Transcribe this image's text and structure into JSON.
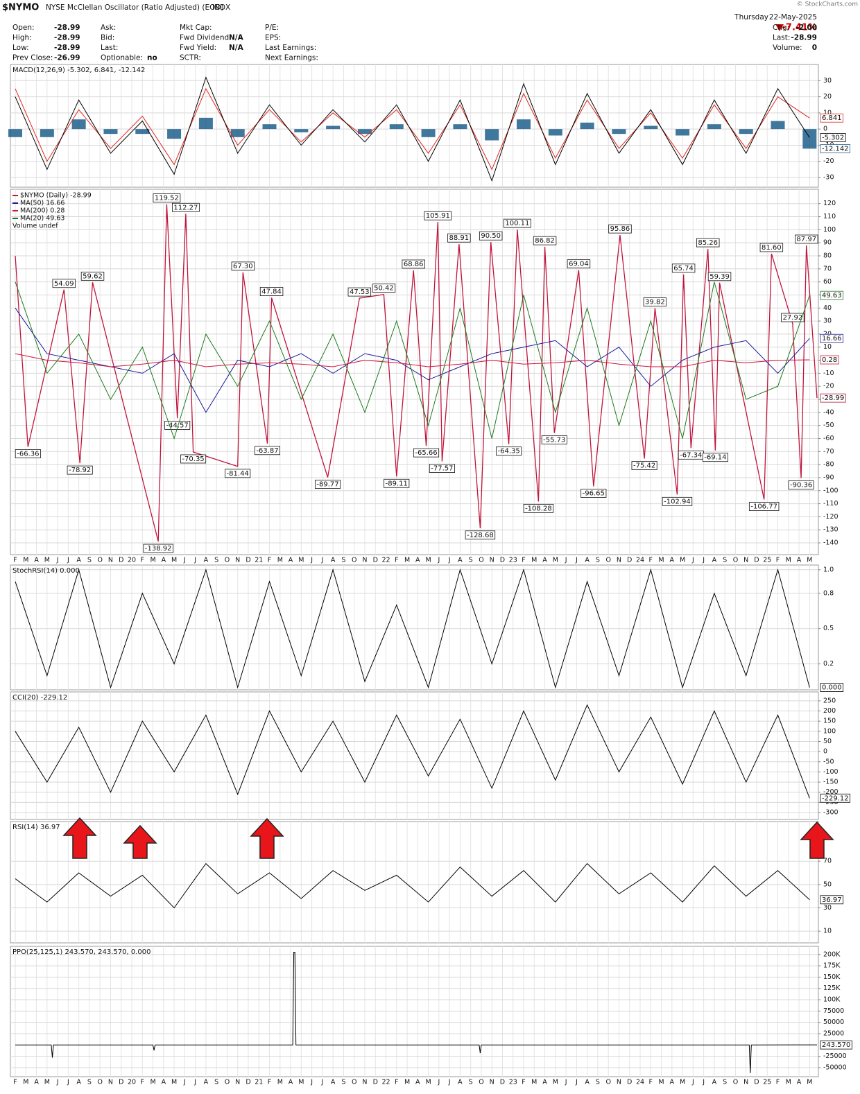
{
  "header": {
    "symbol": "$NYMO",
    "name": "NYSE McClellan Oscillator (Ratio Adjusted) (EOD)",
    "exchange": "INDX",
    "credit": "© StockCharts.com",
    "day": "Thursday",
    "date": "22-May-2025",
    "change_pct": "-7.41%",
    "columns": [
      [
        {
          "label": "Open:",
          "value": "-28.99"
        },
        {
          "label": "High:",
          "value": "-28.99"
        },
        {
          "label": "Low:",
          "value": "-28.99"
        },
        {
          "label": "Prev Close:",
          "value": "-26.99"
        }
      ],
      [
        {
          "label": "Ask:"
        },
        {
          "label": "Bid:"
        },
        {
          "label": "Last:"
        },
        {
          "label": "Optionable:",
          "value": "no"
        }
      ],
      [
        {
          "label": "Mkt Cap:"
        },
        {
          "label": "Fwd Dividend:",
          "value": "N/A"
        },
        {
          "label": "Fwd Yield:",
          "value": "N/A"
        },
        {
          "label": "SCTR:"
        }
      ],
      [
        {
          "label": "P/E:"
        },
        {
          "label": "EPS:"
        },
        {
          "label": "Last Earnings:"
        },
        {
          "label": "Next Earnings:"
        }
      ],
      [
        {
          "label": "Chg:",
          "value": "-2.00"
        },
        {
          "label": "Last:",
          "value": "-28.99"
        },
        {
          "label": "Volume:",
          "value": "0"
        }
      ]
    ]
  },
  "chart_data": [
    {
      "type": "line",
      "title": "MACD(12,26,9) -5.302, 6.841, -12.142",
      "xlim": [
        -0.46,
        75.83
      ],
      "ylim": [
        -36,
        40
      ],
      "yticks": [
        30,
        20,
        10,
        0,
        -10,
        -20,
        -30
      ],
      "grid": true,
      "series": [
        {
          "color": "#1f5f8b",
          "kind": "bar",
          "box": true,
          "x": [
            0,
            3,
            6,
            9,
            12,
            15,
            18,
            21,
            24,
            27,
            30,
            33,
            36,
            39,
            42,
            45,
            48,
            51,
            54,
            57,
            60,
            63,
            66,
            69,
            72,
            75
          ],
          "values": [
            -5,
            -5,
            6,
            -3,
            -3,
            -6,
            7,
            -5,
            3,
            -2,
            2,
            -3,
            3,
            -5,
            3,
            -7,
            6,
            -4,
            4,
            -3,
            2,
            -4,
            3,
            -3,
            5,
            -12.142
          ]
        },
        {
          "color": "#e0241b",
          "box": true,
          "x": [
            0,
            3,
            6,
            9,
            12,
            15,
            18,
            21,
            24,
            27,
            30,
            33,
            36,
            39,
            42,
            45,
            48,
            51,
            54,
            57,
            60,
            63,
            66,
            69,
            72,
            75
          ],
          "values": [
            25,
            -20,
            12,
            -12,
            8,
            -22,
            25,
            -10,
            12,
            -8,
            10,
            -5,
            12,
            -15,
            15,
            -25,
            22,
            -18,
            18,
            -12,
            10,
            -18,
            15,
            -12,
            20,
            6.841
          ]
        },
        {
          "color": "#000000",
          "box": true,
          "x": [
            0,
            3,
            6,
            9,
            12,
            15,
            18,
            21,
            24,
            27,
            30,
            33,
            36,
            39,
            42,
            45,
            48,
            51,
            54,
            57,
            60,
            63,
            66,
            69,
            72,
            75
          ],
          "values": [
            20,
            -25,
            18,
            -15,
            5,
            -28,
            32,
            -15,
            15,
            -10,
            12,
            -8,
            15,
            -20,
            18,
            -32,
            28,
            -22,
            22,
            -15,
            12,
            -22,
            18,
            -15,
            25,
            -5.302
          ]
        }
      ]
    },
    {
      "type": "line",
      "xlim": [
        -0.46,
        75.83
      ],
      "ylim": [
        -149,
        131
      ],
      "yticks": [
        120,
        110,
        100,
        90,
        80,
        70,
        60,
        50,
        40,
        30,
        20,
        10,
        0,
        -10,
        -20,
        -30,
        -40,
        -50,
        -60,
        -70,
        -80,
        -90,
        -100,
        -110,
        -120,
        -130,
        -140
      ],
      "grid": true,
      "categories": [
        "F",
        "M",
        "A",
        "M",
        "J",
        "J",
        "A",
        "S",
        "O",
        "N",
        "D",
        "20",
        "F",
        "M",
        "A",
        "M",
        "J",
        "J",
        "A",
        "S",
        "O",
        "N",
        "D",
        "21",
        "F",
        "M",
        "A",
        "M",
        "J",
        "J",
        "A",
        "S",
        "O",
        "N",
        "D",
        "22",
        "F",
        "M",
        "A",
        "M",
        "J",
        "J",
        "A",
        "S",
        "O",
        "N",
        "D",
        "23",
        "F",
        "M",
        "A",
        "M",
        "J",
        "J",
        "A",
        "S",
        "O",
        "N",
        "D",
        "24",
        "F",
        "M",
        "A",
        "M",
        "J",
        "J",
        "A",
        "S",
        "O",
        "N",
        "D",
        "25",
        "F",
        "M",
        "A",
        "M"
      ],
      "legend_extra": "Volume undef",
      "series": [
        {
          "name": "$NYMO (Daily) -28.99",
          "color": "#c0143c",
          "box": true,
          "x": [
            0,
            1.2,
            4.6,
            6.1,
            7.3,
            13.5,
            14.3,
            15.3,
            16.1,
            16.8,
            21.0,
            21.5,
            23.8,
            24.2,
            29.5,
            32.5,
            34.8,
            36.0,
            37.6,
            38.8,
            39.9,
            40.3,
            41.9,
            43.9,
            44.9,
            46.6,
            47.4,
            49.4,
            50.0,
            50.9,
            53.2,
            54.6,
            57.1,
            59.4,
            60.4,
            62.5,
            63.1,
            63.8,
            65.4,
            66.1,
            66.5,
            70.7,
            71.4,
            73.4,
            74.2,
            74.7,
            75.7
          ],
          "values": [
            80,
            -66.36,
            54.09,
            -78.92,
            59.62,
            -138.92,
            119.52,
            -44.57,
            112.27,
            -70.35,
            -81.44,
            67.3,
            -63.87,
            47.84,
            -89.77,
            47.53,
            50.42,
            -89.11,
            68.86,
            -65.66,
            105.91,
            -77.57,
            88.91,
            -128.68,
            90.5,
            -64.35,
            100.11,
            -108.28,
            86.82,
            -55.73,
            69.04,
            -96.65,
            95.86,
            -75.42,
            39.82,
            -102.94,
            65.74,
            -67.34,
            85.26,
            -69.14,
            59.39,
            -106.77,
            81.6,
            27.92,
            -90.36,
            87.97,
            -28.99
          ],
          "value_labels": [
            null,
            "-66.36",
            "54.09",
            "-78.92",
            "59.62",
            "-138.92",
            "119.52",
            "-44.57",
            "112.27",
            "-70.35",
            "-81.44",
            "67.30",
            "-63.87",
            "47.84",
            "-89.77",
            "47.53",
            "50.42",
            "-89.11",
            "68.86",
            "-65.66",
            "105.91",
            "-77.57",
            "88.91",
            "-128.68",
            "90.50",
            "-64.35",
            "100.11",
            "-108.28",
            "86.82",
            "-55.73",
            "69.04",
            "-96.65",
            "95.86",
            "-75.42",
            "39.82",
            "-102.94",
            "65.74",
            "-67.34",
            "85.26",
            "-69.14",
            "59.39",
            "-106.77",
            "81.60",
            "27.92",
            "-90.36",
            "87.97",
            null
          ]
        },
        {
          "name": "MA(50) 16.66",
          "color": "#1a1a9c",
          "box": true,
          "x": [
            0,
            3,
            6,
            9,
            12,
            15,
            18,
            21,
            24,
            27,
            30,
            33,
            36,
            39,
            42,
            45,
            48,
            51,
            54,
            57,
            60,
            63,
            66,
            69,
            72,
            75
          ],
          "values": [
            40,
            5,
            0,
            -5,
            -10,
            5,
            -40,
            0,
            -5,
            5,
            -10,
            5,
            0,
            -15,
            -5,
            5,
            10,
            15,
            -5,
            10,
            -20,
            0,
            10,
            15,
            -10,
            16.66
          ]
        },
        {
          "name": "MA(200) 0.28",
          "color": "#d2143c",
          "box": true,
          "x": [
            0,
            3,
            6,
            9,
            12,
            15,
            18,
            21,
            24,
            27,
            30,
            33,
            36,
            39,
            42,
            45,
            48,
            51,
            54,
            57,
            60,
            63,
            66,
            69,
            72,
            75
          ],
          "values": [
            5,
            0,
            -2,
            -5,
            -3,
            0,
            -5,
            -3,
            -2,
            -3,
            -5,
            0,
            -2,
            -5,
            -3,
            0,
            -3,
            -2,
            0,
            -3,
            -5,
            -5,
            0,
            -2,
            0,
            0.28
          ]
        },
        {
          "name": "MA(20) 49.63",
          "color": "#1c7a1c",
          "box": true,
          "x": [
            0,
            3,
            6,
            9,
            12,
            15,
            18,
            21,
            24,
            27,
            30,
            33,
            36,
            39,
            42,
            45,
            48,
            51,
            54,
            57,
            60,
            63,
            66,
            69,
            72,
            75
          ],
          "values": [
            60,
            -10,
            20,
            -30,
            10,
            -60,
            20,
            -20,
            30,
            -30,
            20,
            -40,
            30,
            -50,
            40,
            -60,
            50,
            -40,
            40,
            -50,
            30,
            -60,
            60,
            -30,
            -20,
            49.63
          ]
        }
      ]
    },
    {
      "type": "line",
      "title": "StochRSI(14) 0.000",
      "xlim": [
        -0.46,
        75.83
      ],
      "ylim": [
        -0.02,
        1.04
      ],
      "yticks": [
        {
          "value": 1,
          "label": "1.0"
        },
        0.8,
        0.5,
        0.2
      ],
      "grid": true,
      "series": [
        {
          "color": "#000000",
          "box": true,
          "x": [
            0,
            3,
            6,
            9,
            12,
            15,
            18,
            21,
            24,
            27,
            30,
            33,
            36,
            39,
            42,
            45,
            48,
            51,
            54,
            57,
            60,
            63,
            66,
            69,
            72,
            75
          ],
          "values": [
            0.9,
            0.1,
            1,
            0,
            0.8,
            0.2,
            1,
            0,
            0.9,
            0.1,
            1,
            0.05,
            0.7,
            0,
            1,
            0.2,
            1,
            0,
            0.9,
            0.1,
            1,
            0,
            0.8,
            0.1,
            1,
            0
          ],
          "value_labels": [
            null,
            null,
            null,
            null,
            null,
            null,
            null,
            null,
            null,
            null,
            null,
            null,
            null,
            null,
            null,
            null,
            null,
            null,
            null,
            null,
            null,
            null,
            null,
            null,
            null,
            "0.000"
          ]
        }
      ]
    },
    {
      "type": "line",
      "title": "CCI(20) -229.12",
      "xlim": [
        -0.46,
        75.83
      ],
      "ylim": [
        -334,
        294
      ],
      "yticks": [
        250,
        200,
        150,
        100,
        50,
        0,
        -50,
        -100,
        -150,
        -200,
        -250,
        -300
      ],
      "grid": true,
      "series": [
        {
          "color": "#000000",
          "box": true,
          "x": [
            0,
            3,
            6,
            9,
            12,
            15,
            18,
            21,
            24,
            27,
            30,
            33,
            36,
            39,
            42,
            45,
            48,
            51,
            54,
            57,
            60,
            63,
            66,
            69,
            72,
            75
          ],
          "values": [
            100,
            -150,
            120,
            -200,
            150,
            -100,
            180,
            -210,
            200,
            -100,
            150,
            -150,
            180,
            -120,
            160,
            -180,
            200,
            -140,
            230,
            -100,
            170,
            -160,
            200,
            -150,
            180,
            -229.12
          ]
        }
      ]
    },
    {
      "type": "line",
      "title": "RSI(14) 36.97",
      "xlim": [
        -0.46,
        75.83
      ],
      "ylim": [
        0,
        104
      ],
      "yticks": [
        70,
        50,
        30,
        10
      ],
      "grid": true,
      "series": [
        {
          "color": "#000000",
          "box": true,
          "x": [
            0,
            3,
            6,
            9,
            12,
            15,
            18,
            21,
            24,
            27,
            30,
            33,
            36,
            39,
            42,
            45,
            48,
            51,
            54,
            57,
            60,
            63,
            66,
            69,
            72,
            75
          ],
          "values": [
            55,
            35,
            60,
            40,
            58,
            30,
            68,
            42,
            60,
            38,
            62,
            45,
            58,
            35,
            65,
            40,
            62,
            35,
            68,
            42,
            60,
            35,
            66,
            40,
            62,
            36.97
          ]
        }
      ]
    },
    {
      "type": "line",
      "title": "PPO(25,125,1) 243.570, 243.570, 0.000",
      "xlim": [
        -0.46,
        75.83
      ],
      "ylim": [
        -70000,
        218000
      ],
      "yticks": [
        {
          "value": 200000,
          "label": "200K"
        },
        {
          "value": 175000,
          "label": "175K"
        },
        {
          "value": 150000,
          "label": "150K"
        },
        {
          "value": 125000,
          "label": "125K"
        },
        {
          "value": 100000,
          "label": "100K"
        },
        75000,
        50000,
        25000,
        -25000,
        -50000
      ],
      "grid": true,
      "categories": [
        "F",
        "M",
        "A",
        "M",
        "J",
        "J",
        "A",
        "S",
        "O",
        "N",
        "D",
        "20",
        "F",
        "M",
        "A",
        "M",
        "J",
        "J",
        "A",
        "S",
        "O",
        "N",
        "D",
        "21",
        "F",
        "M",
        "A",
        "M",
        "J",
        "J",
        "A",
        "S",
        "O",
        "N",
        "D",
        "22",
        "F",
        "M",
        "A",
        "M",
        "J",
        "J",
        "A",
        "S",
        "O",
        "N",
        "D",
        "23",
        "F",
        "M",
        "A",
        "M",
        "J",
        "J",
        "A",
        "S",
        "O",
        "N",
        "D",
        "24",
        "F",
        "M",
        "A",
        "M",
        "J",
        "J",
        "A",
        "S",
        "O",
        "N",
        "D",
        "25",
        "F",
        "M",
        "A",
        "M"
      ],
      "series": [
        {
          "color": "#000000",
          "box": true,
          "x": [
            0,
            3.4,
            3.5,
            3.6,
            13.0,
            13.1,
            13.2,
            26.2,
            26.3,
            26.4,
            26.5,
            43.8,
            43.9,
            44.0,
            69.3,
            69.4,
            69.5,
            75.7
          ],
          "values": [
            0,
            0,
            -28000,
            0,
            0,
            -12000,
            0,
            0,
            205000,
            205000,
            0,
            0,
            -18000,
            0,
            0,
            -62000,
            0,
            243.57
          ],
          "value_labels": [
            null,
            null,
            null,
            null,
            null,
            null,
            null,
            null,
            null,
            null,
            null,
            null,
            null,
            null,
            null,
            null,
            null,
            "243.570"
          ]
        }
      ]
    }
  ]
}
